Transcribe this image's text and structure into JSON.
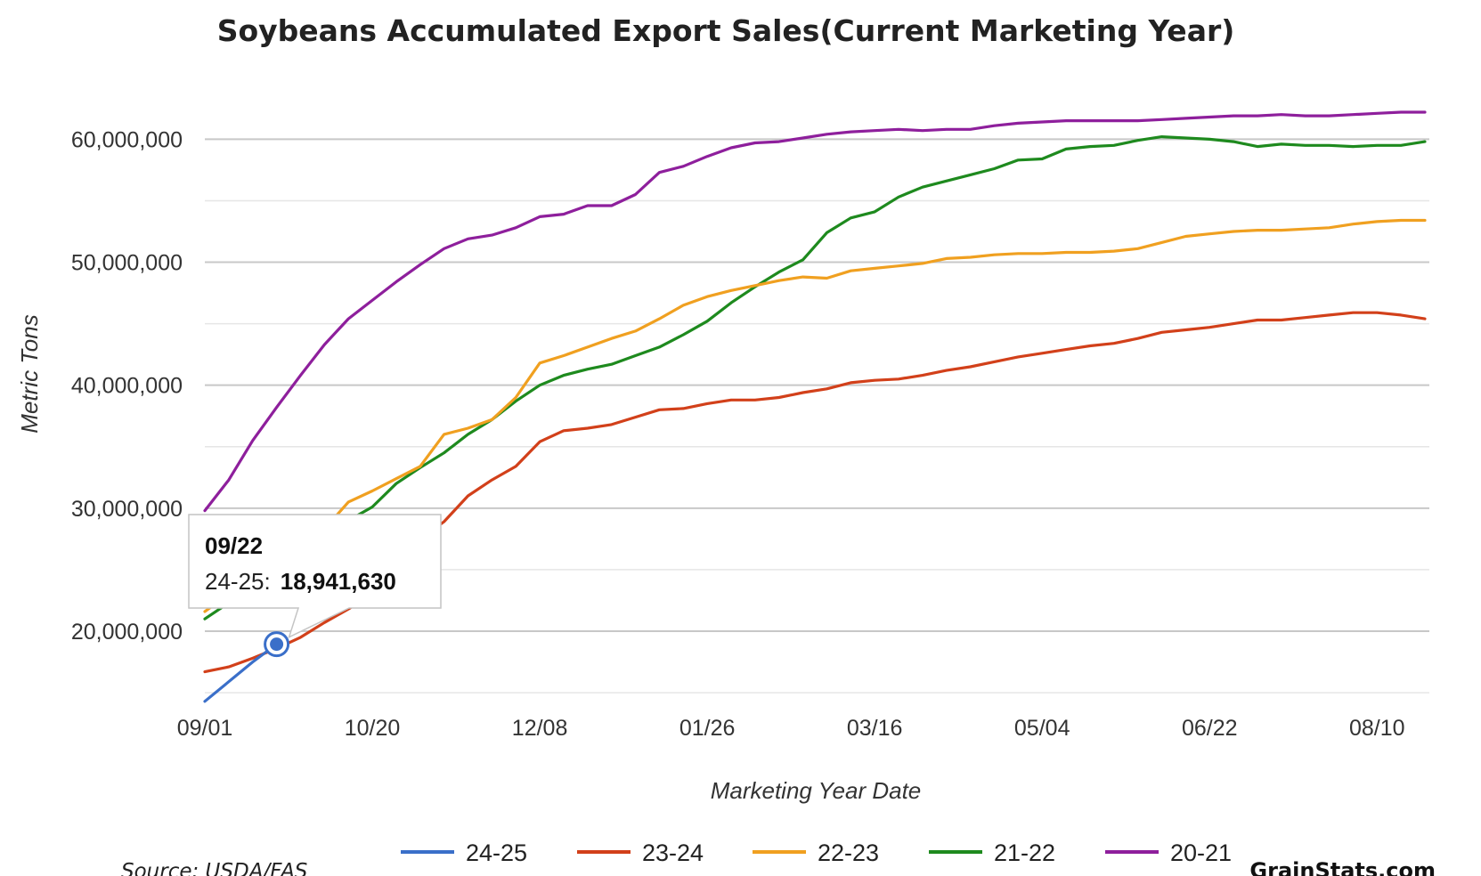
{
  "chart_data": {
    "type": "line",
    "title": "Soybeans Accumulated Export Sales(Current Marketing Year)",
    "xlabel": "Marketing Year Date",
    "ylabel": "Metric Tons",
    "x_start": "09/01",
    "x_tick_labels": [
      "09/01",
      "10/20",
      "12/08",
      "01/26",
      "03/16",
      "05/04",
      "06/22",
      "08/10"
    ],
    "y_ticks": [
      20000000,
      30000000,
      40000000,
      50000000,
      60000000
    ],
    "y_tick_labels": [
      "20,000,000",
      "30,000,000",
      "40,000,000",
      "50,000,000",
      "60,000,000"
    ],
    "ylim": [
      14500000,
      63500000
    ],
    "grid": true,
    "legend_position": "bottom",
    "series": [
      {
        "name": "20-21",
        "color": "#8e1f9c",
        "values": [
          29800000,
          32300000,
          35500000,
          38200000,
          40800000,
          43300000,
          45400000,
          46900000,
          48400000,
          49800000,
          51100000,
          51900000,
          52200000,
          52800000,
          53700000,
          53900000,
          54600000,
          54600000,
          55500000,
          57300000,
          57800000,
          58600000,
          59300000,
          59700000,
          59800000,
          60100000,
          60400000,
          60600000,
          60700000,
          60800000,
          60700000,
          60800000,
          60800000,
          61100000,
          61300000,
          61400000,
          61500000,
          61500000,
          61500000,
          61500000,
          61600000,
          61700000,
          61800000,
          61900000,
          61900000,
          62000000,
          61900000,
          61900000,
          62000000,
          62100000,
          62200000,
          62200000
        ]
      },
      {
        "name": "21-22",
        "color": "#1e8a1e",
        "values": [
          21000000,
          22300000,
          23400000,
          24500000,
          25800000,
          27300000,
          29000000,
          30100000,
          32000000,
          33300000,
          34500000,
          36000000,
          37200000,
          38700000,
          40000000,
          40800000,
          41300000,
          41700000,
          42400000,
          43100000,
          44100000,
          45200000,
          46700000,
          48000000,
          49200000,
          50200000,
          52400000,
          53600000,
          54100000,
          55300000,
          56100000,
          56600000,
          57100000,
          57600000,
          58300000,
          58400000,
          59200000,
          59400000,
          59500000,
          59900000,
          60200000,
          60100000,
          60000000,
          59800000,
          59400000,
          59600000,
          59500000,
          59500000,
          59400000,
          59500000,
          59500000,
          59800000
        ]
      },
      {
        "name": "22-23",
        "color": "#f0a020",
        "values": [
          21600000,
          23000000,
          24300000,
          25500000,
          26800000,
          28300000,
          30500000,
          31400000,
          32400000,
          33400000,
          36000000,
          36500000,
          37200000,
          39000000,
          41800000,
          42400000,
          43100000,
          43800000,
          44400000,
          45400000,
          46500000,
          47200000,
          47700000,
          48100000,
          48500000,
          48800000,
          48700000,
          49300000,
          49500000,
          49700000,
          49900000,
          50300000,
          50400000,
          50600000,
          50700000,
          50700000,
          50800000,
          50800000,
          50900000,
          51100000,
          51600000,
          52100000,
          52300000,
          52500000,
          52600000,
          52600000,
          52700000,
          52800000,
          53100000,
          53300000,
          53400000,
          53400000
        ]
      },
      {
        "name": "23-24",
        "color": "#d2401a",
        "values": [
          16700000,
          17100000,
          17800000,
          18600000,
          19500000,
          20700000,
          21800000,
          23000000,
          25300000,
          27500000,
          28900000,
          31000000,
          32300000,
          33400000,
          35400000,
          36300000,
          36500000,
          36800000,
          37400000,
          38000000,
          38100000,
          38500000,
          38800000,
          38800000,
          39000000,
          39400000,
          39700000,
          40200000,
          40400000,
          40500000,
          40800000,
          41200000,
          41500000,
          41900000,
          42300000,
          42600000,
          42900000,
          43200000,
          43400000,
          43800000,
          44300000,
          44500000,
          44700000,
          45000000,
          45300000,
          45300000,
          45500000,
          45700000,
          45900000,
          45900000,
          45700000,
          45400000
        ]
      },
      {
        "name": "24-25",
        "color": "#3a6fc9",
        "values": [
          14300000,
          15900000,
          17500000,
          18941630
        ]
      }
    ],
    "tooltip": {
      "date": "09/22",
      "series_name": "24-25",
      "separator": ":",
      "value_label": "18,941,630",
      "value": 18941630,
      "point_index": 3
    },
    "source": "Source: USDA/FAS",
    "brand": "GrainStats.com"
  }
}
